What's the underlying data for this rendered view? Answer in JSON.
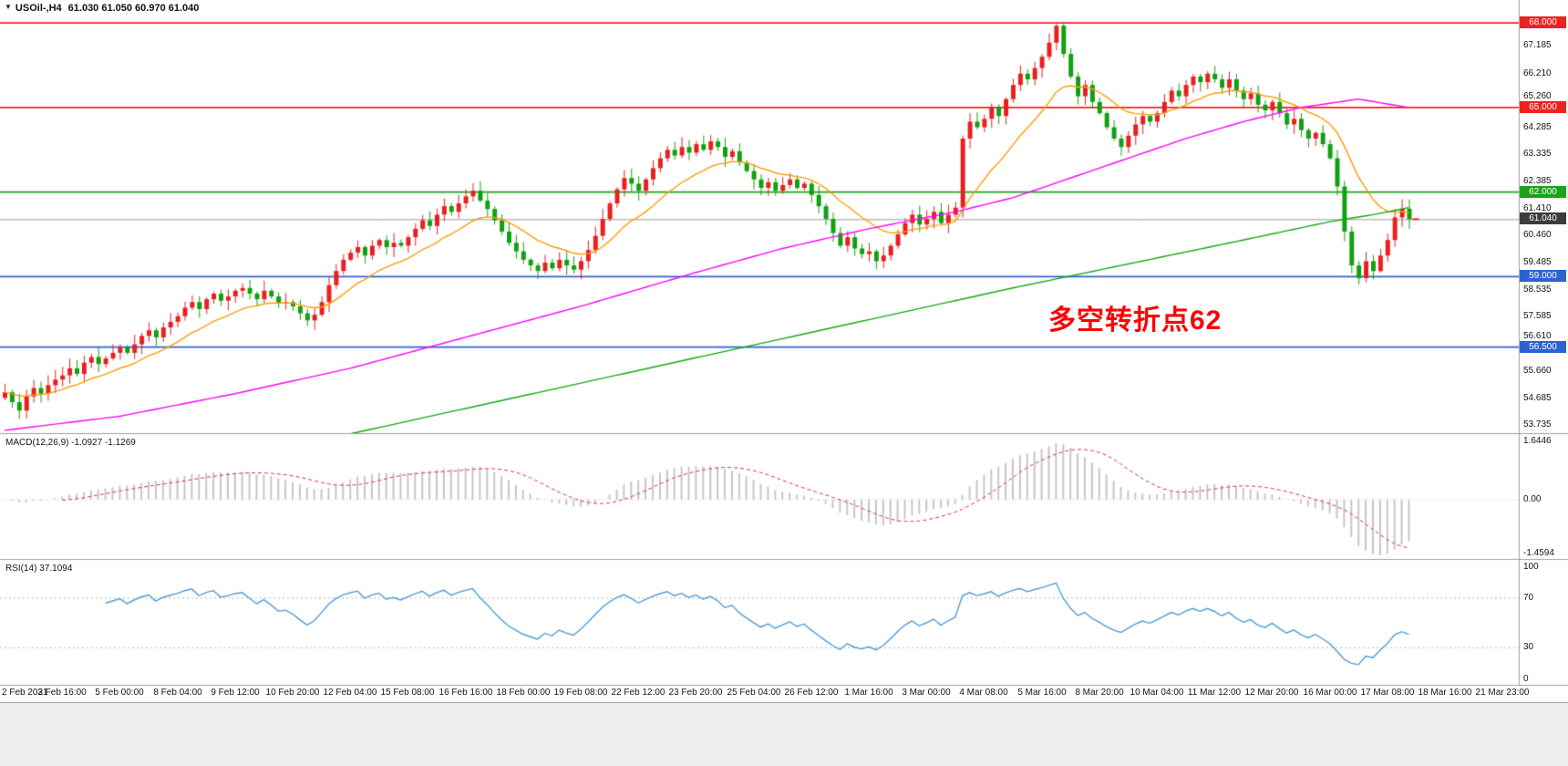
{
  "header": {
    "marker": "▼",
    "symbol_timeframe": "USOil-,H4",
    "ohlc": "61.030 61.050 60.970 61.040"
  },
  "chart_data": [
    {
      "name": "price",
      "type": "candlestick",
      "title": "USOil-,H4",
      "symbol": "USOil-",
      "timeframe": "H4",
      "ylim": [
        53.45,
        68.75
      ],
      "up_color": "#e82020",
      "down_color": "#11a011",
      "y_ticks": [
        "67.185",
        "66.210",
        "65.260",
        "64.285",
        "63.335",
        "62.385",
        "61.410",
        "60.460",
        "59.485",
        "58.535",
        "57.585",
        "56.610",
        "55.660",
        "54.685",
        "53.735"
      ],
      "levels": [
        {
          "value": 68.0,
          "label": "68.000",
          "color": "#f02020"
        },
        {
          "value": 65.0,
          "label": "65.000",
          "color": "#f02020"
        },
        {
          "value": 62.0,
          "label": "62.000",
          "color": "#1ca31c"
        },
        {
          "value": 59.0,
          "label": "59.000",
          "color": "#2d62d4"
        },
        {
          "value": 56.5,
          "label": "56.500",
          "color": "#2d62d4"
        }
      ],
      "current_price": {
        "value": 61.04,
        "label": "61.040",
        "badge_color": "#3c3c3c",
        "line_color": "#9a9a9a"
      },
      "first_open": 54.7,
      "closes": [
        54.9,
        54.55,
        54.25,
        54.75,
        55.05,
        54.85,
        55.15,
        55.35,
        55.5,
        55.75,
        55.55,
        55.95,
        56.15,
        55.9,
        56.1,
        56.3,
        56.5,
        56.3,
        56.6,
        56.9,
        57.1,
        56.85,
        57.2,
        57.4,
        57.6,
        57.9,
        58.1,
        57.85,
        58.2,
        58.4,
        58.15,
        58.3,
        58.5,
        58.6,
        58.4,
        58.2,
        58.5,
        58.3,
        58.05,
        58.1,
        57.95,
        57.7,
        57.45,
        57.65,
        58.1,
        58.7,
        59.2,
        59.6,
        59.85,
        60.05,
        59.75,
        60.1,
        60.3,
        60.05,
        60.2,
        60.1,
        60.4,
        60.7,
        61.0,
        60.8,
        61.2,
        61.5,
        61.3,
        61.6,
        61.85,
        62.05,
        61.7,
        61.4,
        61.0,
        60.6,
        60.2,
        59.9,
        59.6,
        59.4,
        59.2,
        59.5,
        59.3,
        59.6,
        59.4,
        59.25,
        59.55,
        59.95,
        60.45,
        61.05,
        61.6,
        62.1,
        62.5,
        62.3,
        62.05,
        62.45,
        62.85,
        63.2,
        63.5,
        63.3,
        63.6,
        63.4,
        63.7,
        63.5,
        63.8,
        63.6,
        63.25,
        63.45,
        63.05,
        62.75,
        62.45,
        62.15,
        62.35,
        62.05,
        62.25,
        62.45,
        62.15,
        62.3,
        61.9,
        61.5,
        61.05,
        60.55,
        60.1,
        60.4,
        60.0,
        59.8,
        59.9,
        59.55,
        59.75,
        60.1,
        60.5,
        60.9,
        61.2,
        60.85,
        61.05,
        61.3,
        60.9,
        61.2,
        61.45,
        63.9,
        64.5,
        64.3,
        64.6,
        65.0,
        64.7,
        65.3,
        65.8,
        66.2,
        66.0,
        66.4,
        66.8,
        67.3,
        67.9,
        66.9,
        66.1,
        65.4,
        65.8,
        65.2,
        64.8,
        64.3,
        63.9,
        63.6,
        64.0,
        64.4,
        64.7,
        64.5,
        64.8,
        65.2,
        65.6,
        65.4,
        65.8,
        66.1,
        65.9,
        66.2,
        66.0,
        65.7,
        66.0,
        65.6,
        65.3,
        65.5,
        65.1,
        64.9,
        65.2,
        64.8,
        64.4,
        64.6,
        64.2,
        63.9,
        64.1,
        63.7,
        63.2,
        62.2,
        60.6,
        59.4,
        58.95,
        59.55,
        59.2,
        59.75,
        60.3,
        61.1,
        61.41,
        61.04
      ],
      "moving_averages": [
        {
          "name": "ma-fast",
          "color": "#ff9d00",
          "type": "ema",
          "period": 14
        },
        {
          "name": "ma-mid",
          "color": "#ff00ff",
          "keypoints": [
            [
              0,
              53.55
            ],
            [
              16,
              54.05
            ],
            [
              32,
              54.85
            ],
            [
              48,
              55.75
            ],
            [
              64,
              56.85
            ],
            [
              80,
              57.95
            ],
            [
              96,
              59.15
            ],
            [
              108,
              60.0
            ],
            [
              120,
              60.7
            ],
            [
              132,
              61.3
            ],
            [
              140,
              61.8
            ],
            [
              148,
              62.5
            ],
            [
              156,
              63.2
            ],
            [
              164,
              63.9
            ],
            [
              172,
              64.5
            ],
            [
              180,
              65.0
            ],
            [
              188,
              65.3
            ],
            [
              195,
              65.0
            ]
          ]
        },
        {
          "name": "ma-slow",
          "color": "#13a913",
          "keypoints": [
            [
              30,
              52.5
            ],
            [
              44,
              53.2
            ],
            [
              60,
              54.1
            ],
            [
              76,
              55.0
            ],
            [
              92,
              55.9
            ],
            [
              108,
              56.8
            ],
            [
              124,
              57.7
            ],
            [
              140,
              58.6
            ],
            [
              156,
              59.45
            ],
            [
              172,
              60.3
            ],
            [
              184,
              60.95
            ],
            [
              190,
              61.2
            ],
            [
              195,
              61.45
            ]
          ]
        }
      ],
      "annotation": {
        "text": "多空转折点62",
        "color": "#ff0000"
      },
      "x_labels": [
        "2 Feb 2021",
        "3 Feb 16:00",
        "5 Feb 00:00",
        "8 Feb 04:00",
        "9 Feb 12:00",
        "10 Feb 20:00",
        "12 Feb 04:00",
        "15 Feb 08:00",
        "16 Feb 16:00",
        "18 Feb 00:00",
        "19 Feb 08:00",
        "22 Feb 12:00",
        "23 Feb 20:00",
        "25 Feb 04:00",
        "26 Feb 12:00",
        "1 Mar 16:00",
        "3 Mar 00:00",
        "4 Mar 08:00",
        "5 Mar 16:00",
        "8 Mar 20:00",
        "10 Mar 04:00",
        "11 Mar 12:00",
        "12 Mar 20:00",
        "16 Mar 00:00",
        "17 Mar 08:00",
        "18 Mar 16:00",
        "21 Mar 23:00"
      ]
    },
    {
      "name": "macd",
      "type": "macd",
      "label": "MACD(12,26,9) -1.0927 -1.1269",
      "params": [
        12,
        26,
        9
      ],
      "value_main": -1.0927,
      "value_signal": -1.1269,
      "y_ticks": [
        {
          "v": 1.6446,
          "label": "1.6446"
        },
        {
          "v": 0,
          "label": "0.00"
        },
        {
          "v": -1.4594,
          "label": "-1.4594"
        }
      ],
      "histogram_color": "#c6c6c6",
      "signal_color": "#e03131",
      "derived": "computed from price closes"
    },
    {
      "name": "rsi",
      "type": "rsi",
      "label": "RSI(14) 37.1094",
      "period": 14,
      "value": 37.1094,
      "ylim": [
        0,
        100
      ],
      "levels": [
        70,
        30
      ],
      "y_ticks": [
        {
          "v": 100,
          "label": "100"
        },
        {
          "v": 70,
          "label": "70"
        },
        {
          "v": 30,
          "label": "30"
        },
        {
          "v": 0,
          "label": "0"
        }
      ],
      "line_color": "#4f9bd5",
      "derived": "computed from price closes"
    }
  ]
}
